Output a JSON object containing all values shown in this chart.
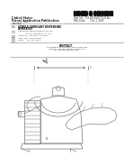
{
  "bg_color": "#ffffff",
  "barcode_color": "#111111",
  "header_lines": [
    "United States",
    "Patent Application Publication",
    "Arackal"
  ],
  "header_right_col": [
    "Pub. No.:  US 2013/0277533 A1",
    "Pub. Date:       Oct. 1, 2013"
  ],
  "section_labels": [
    "(54)",
    "(71)",
    "(72)",
    "(21)",
    "(22)"
  ],
  "title_text": "STERILE LUBRICANT DISPENSING APPARATUS",
  "meta_lines": [
    "Applicant: WRAP PRODUCTS INC. OF TX,\n           Pearland, TX (US)",
    "Inventor:  ARACKAL, TX (US)",
    "Appl. No.: 13/978,583",
    "Filed:     Jul. 10, 2013"
  ],
  "abstract_title": "ABSTRACT",
  "abstract_text": "The present disclosure is for a sterile lubricant that\ncan be used in numerous medical locations and devices.",
  "figure_label": "100",
  "lc": "#777777",
  "lc_dark": "#444444",
  "lc_light": "#aaaaaa"
}
